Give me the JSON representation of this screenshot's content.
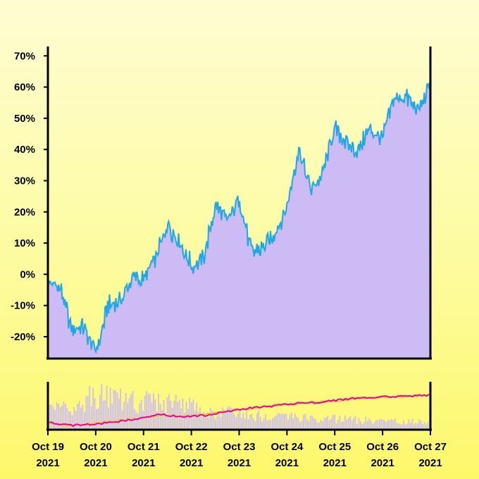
{
  "chart_data": [
    {
      "type": "area",
      "ylim": [
        -27,
        73
      ],
      "y_ticks": [
        "70%",
        "60%",
        "50%",
        "40%",
        "30%",
        "20%",
        "10%",
        "0%",
        "-10%",
        "-20%"
      ],
      "y_tick_values": [
        70,
        60,
        50,
        40,
        30,
        20,
        10,
        0,
        -10,
        -20
      ],
      "x_range": [
        "2021-10-19",
        "2021-10-27"
      ],
      "grid": false,
      "series": [
        {
          "x": [
            "2021-10-19 00:00",
            "2021-10-19 06:00",
            "2021-10-19 12:00",
            "2021-10-19 18:00",
            "2021-10-20 00:00",
            "2021-10-20 06:00",
            "2021-10-20 12:00",
            "2021-10-20 18:00",
            "2021-10-21 00:00",
            "2021-10-21 06:00",
            "2021-10-21 12:00",
            "2021-10-21 18:00",
            "2021-10-22 00:00",
            "2021-10-22 06:00",
            "2021-10-22 12:00",
            "2021-10-22 18:00",
            "2021-10-23 00:00",
            "2021-10-23 06:00",
            "2021-10-23 12:00",
            "2021-10-23 18:00",
            "2021-10-24 00:00",
            "2021-10-24 06:00",
            "2021-10-24 12:00",
            "2021-10-24 18:00",
            "2021-10-25 00:00",
            "2021-10-25 06:00",
            "2021-10-25 12:00",
            "2021-10-25 18:00",
            "2021-10-26 00:00",
            "2021-10-26 06:00",
            "2021-10-26 12:00",
            "2021-10-26 18:00",
            "2021-10-27 00:00"
          ],
          "values": [
            -2,
            -5,
            -18,
            -17,
            -25,
            -10,
            -9,
            -1,
            -2,
            5,
            16,
            10,
            3,
            5,
            22,
            17,
            25,
            7,
            8,
            13,
            22,
            40,
            27,
            32,
            47,
            42,
            40,
            47,
            43,
            56,
            57,
            52,
            60
          ]
        }
      ],
      "colors": {
        "fill": "#cdbbf6",
        "line": "#1fa8e6"
      }
    },
    {
      "type": "bar",
      "overlay_lines": true,
      "colors": {
        "bars": "#cdbbf6",
        "line_primary": "#e8009a",
        "line_secondary": "#f3c84a"
      },
      "x_ticks": [
        {
          "line1": "Oct 19",
          "line2": "2021"
        },
        {
          "line1": "Oct 20",
          "line2": "2021"
        },
        {
          "line1": "Oct 21",
          "line2": "2021"
        },
        {
          "line1": "Oct 22",
          "line2": "2021"
        },
        {
          "line1": "Oct 23",
          "line2": "2021"
        },
        {
          "line1": "Oct 24",
          "line2": "2021"
        },
        {
          "line1": "Oct 25",
          "line2": "2021"
        },
        {
          "line1": "Oct 26",
          "line2": "2021"
        },
        {
          "line1": "Oct 27",
          "line2": "2021"
        }
      ],
      "bar_values_relative": [
        0.55,
        0.6,
        0.95,
        0.85,
        0.75,
        0.7,
        0.65,
        0.5,
        0.45,
        0.4,
        0.35,
        0.32,
        0.3,
        0.28,
        0.25,
        0.22,
        0.2,
        0.2
      ],
      "line_primary_relative": [
        0.1,
        0.02,
        0.05,
        0.12,
        0.2,
        0.32,
        0.25,
        0.3,
        0.4,
        0.5,
        0.55,
        0.62,
        0.65,
        0.72,
        0.78,
        0.8,
        0.82,
        0.85
      ],
      "line_secondary_relative": [
        0.05,
        0.02,
        0.08,
        0.15,
        0.22,
        0.3,
        0.28,
        0.32,
        0.42,
        0.48,
        0.56,
        0.6,
        0.66,
        0.7,
        0.76,
        0.78,
        0.8,
        0.84
      ]
    }
  ]
}
